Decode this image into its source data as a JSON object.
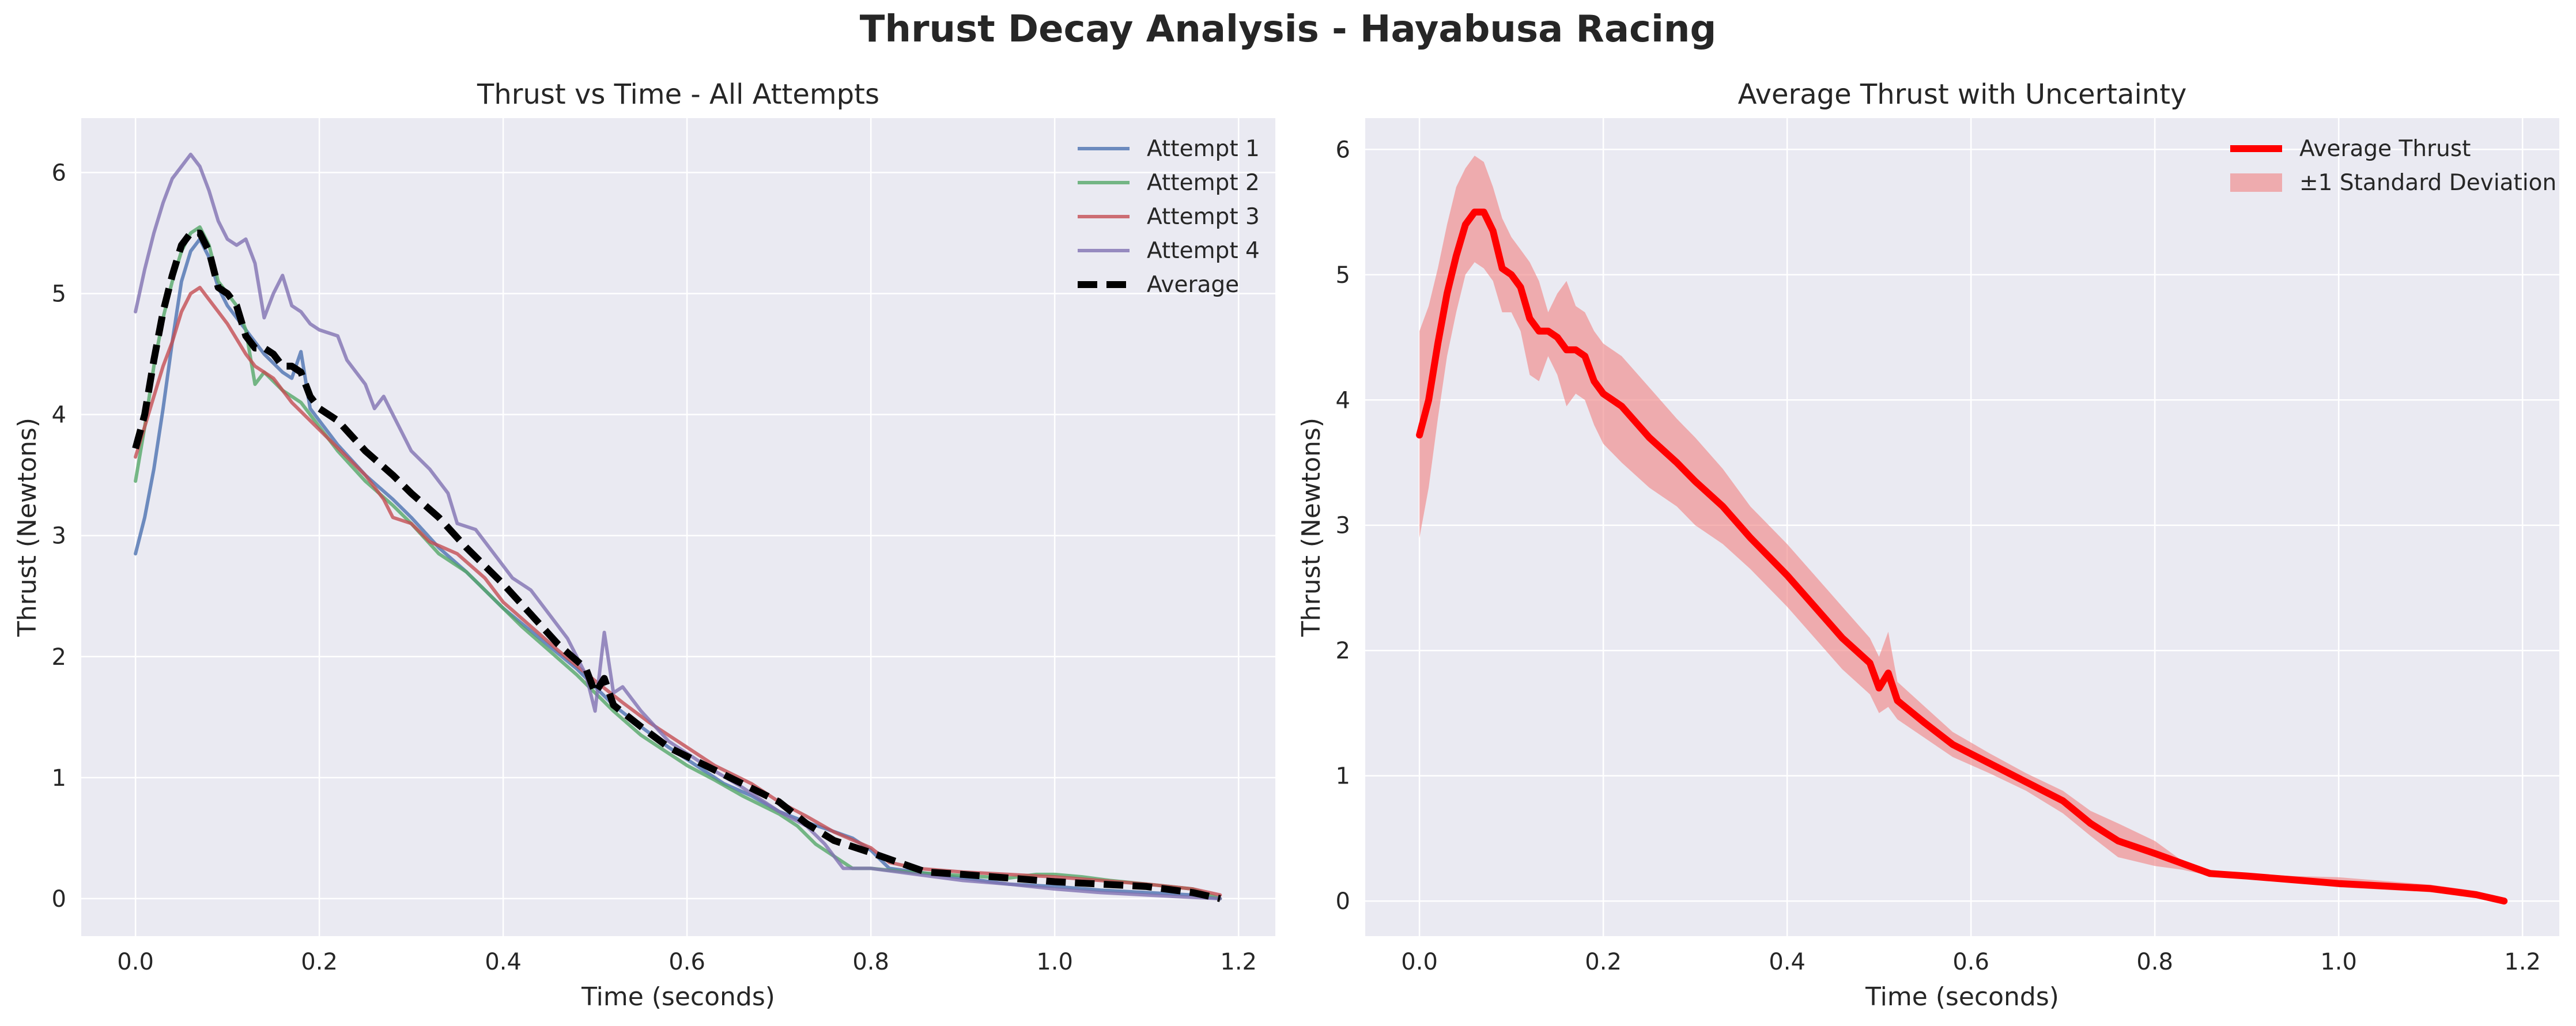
{
  "title": "Thrust Decay Analysis - Hayabusa Racing",
  "chart_data": [
    {
      "type": "line",
      "title": "Thrust vs Time - All Attempts",
      "xlabel": "Time (seconds)",
      "ylabel": "Thrust (Newtons)",
      "xlim": [
        -0.059,
        1.24
      ],
      "ylim": [
        -0.31,
        6.45
      ],
      "xticks": [
        0.0,
        0.2,
        0.4,
        0.6,
        0.8,
        1.0,
        1.2
      ],
      "xtick_labels": [
        "0.0",
        "0.2",
        "0.4",
        "0.6",
        "0.8",
        "1.0",
        "1.2"
      ],
      "yticks": [
        0,
        1,
        2,
        3,
        4,
        5,
        6
      ],
      "ytick_labels": [
        "0",
        "1",
        "2",
        "3",
        "4",
        "5",
        "6"
      ],
      "grid": true,
      "legend_position": "top-right",
      "series": [
        {
          "name": "Attempt 1",
          "color": "#4c72b0",
          "style": "solid",
          "x": [
            0.0,
            0.01,
            0.02,
            0.03,
            0.04,
            0.05,
            0.06,
            0.07,
            0.08,
            0.09,
            0.1,
            0.12,
            0.14,
            0.16,
            0.17,
            0.18,
            0.19,
            0.2,
            0.22,
            0.25,
            0.28,
            0.3,
            0.33,
            0.36,
            0.4,
            0.44,
            0.48,
            0.5,
            0.52,
            0.55,
            0.58,
            0.6,
            0.62,
            0.64,
            0.67,
            0.7,
            0.73,
            0.75,
            0.78,
            0.8,
            0.82,
            0.85,
            0.9,
            0.95,
            1.0,
            1.05,
            1.1,
            1.15,
            1.18
          ],
          "y": [
            2.85,
            3.15,
            3.55,
            4.05,
            4.6,
            5.1,
            5.35,
            5.45,
            5.3,
            5.05,
            4.9,
            4.7,
            4.5,
            4.35,
            4.3,
            4.52,
            4.05,
            3.95,
            3.75,
            3.5,
            3.3,
            3.15,
            2.9,
            2.7,
            2.4,
            2.15,
            1.9,
            1.75,
            1.6,
            1.42,
            1.25,
            1.15,
            1.05,
            0.95,
            0.85,
            0.72,
            0.63,
            0.58,
            0.5,
            0.4,
            0.25,
            0.22,
            0.17,
            0.12,
            0.1,
            0.07,
            0.05,
            0.03,
            0.0
          ]
        },
        {
          "name": "Attempt 2",
          "color": "#55a868",
          "style": "solid",
          "x": [
            0.0,
            0.01,
            0.02,
            0.03,
            0.04,
            0.05,
            0.06,
            0.07,
            0.08,
            0.09,
            0.1,
            0.11,
            0.12,
            0.13,
            0.14,
            0.16,
            0.18,
            0.2,
            0.22,
            0.25,
            0.28,
            0.3,
            0.33,
            0.36,
            0.38,
            0.4,
            0.42,
            0.45,
            0.48,
            0.5,
            0.52,
            0.55,
            0.58,
            0.6,
            0.63,
            0.66,
            0.7,
            0.72,
            0.74,
            0.78,
            0.8,
            0.84,
            0.9,
            0.95,
            0.98,
            1.0,
            1.03,
            1.06,
            1.1,
            1.15,
            1.18
          ],
          "y": [
            3.45,
            3.9,
            4.4,
            4.8,
            5.1,
            5.35,
            5.5,
            5.55,
            5.4,
            5.1,
            5.0,
            4.9,
            4.7,
            4.25,
            4.35,
            4.2,
            4.1,
            3.9,
            3.7,
            3.45,
            3.25,
            3.1,
            2.85,
            2.7,
            2.55,
            2.4,
            2.25,
            2.05,
            1.85,
            1.7,
            1.55,
            1.35,
            1.2,
            1.1,
            0.98,
            0.85,
            0.7,
            0.6,
            0.45,
            0.25,
            0.25,
            0.22,
            0.19,
            0.17,
            0.2,
            0.2,
            0.18,
            0.15,
            0.12,
            0.08,
            0.0
          ]
        },
        {
          "name": "Attempt 3",
          "color": "#c44e52",
          "style": "solid",
          "x": [
            0.0,
            0.01,
            0.02,
            0.03,
            0.04,
            0.05,
            0.06,
            0.07,
            0.08,
            0.09,
            0.1,
            0.12,
            0.13,
            0.15,
            0.17,
            0.19,
            0.21,
            0.23,
            0.25,
            0.27,
            0.28,
            0.3,
            0.32,
            0.35,
            0.38,
            0.4,
            0.43,
            0.46,
            0.5,
            0.53,
            0.56,
            0.6,
            0.63,
            0.67,
            0.7,
            0.73,
            0.76,
            0.8,
            0.82,
            0.85,
            0.9,
            0.95,
            1.0,
            1.05,
            1.1,
            1.15,
            1.18
          ],
          "y": [
            3.65,
            3.9,
            4.15,
            4.4,
            4.6,
            4.85,
            5.0,
            5.05,
            4.95,
            4.85,
            4.75,
            4.5,
            4.4,
            4.3,
            4.1,
            3.95,
            3.8,
            3.65,
            3.5,
            3.3,
            3.15,
            3.1,
            2.95,
            2.85,
            2.65,
            2.45,
            2.25,
            2.05,
            1.8,
            1.62,
            1.45,
            1.25,
            1.1,
            0.95,
            0.8,
            0.68,
            0.55,
            0.42,
            0.3,
            0.25,
            0.22,
            0.2,
            0.18,
            0.15,
            0.12,
            0.08,
            0.03
          ]
        },
        {
          "name": "Attempt 4",
          "color": "#8172b2",
          "style": "solid",
          "x": [
            0.0,
            0.01,
            0.02,
            0.03,
            0.04,
            0.05,
            0.06,
            0.07,
            0.08,
            0.09,
            0.1,
            0.11,
            0.12,
            0.13,
            0.14,
            0.15,
            0.16,
            0.17,
            0.18,
            0.19,
            0.2,
            0.22,
            0.23,
            0.25,
            0.26,
            0.27,
            0.28,
            0.29,
            0.3,
            0.32,
            0.34,
            0.35,
            0.37,
            0.39,
            0.41,
            0.43,
            0.45,
            0.47,
            0.49,
            0.5,
            0.51,
            0.52,
            0.53,
            0.55,
            0.58,
            0.62,
            0.66,
            0.7,
            0.73,
            0.75,
            0.77,
            0.8,
            0.85,
            0.9,
            0.95,
            1.0,
            1.05,
            1.1,
            1.15,
            1.18
          ],
          "y": [
            4.85,
            5.2,
            5.5,
            5.75,
            5.95,
            6.05,
            6.15,
            6.05,
            5.85,
            5.6,
            5.45,
            5.4,
            5.45,
            5.25,
            4.8,
            5.0,
            5.15,
            4.9,
            4.85,
            4.75,
            4.7,
            4.65,
            4.45,
            4.25,
            4.05,
            4.15,
            4.0,
            3.85,
            3.7,
            3.55,
            3.35,
            3.1,
            3.05,
            2.85,
            2.65,
            2.55,
            2.35,
            2.15,
            1.85,
            1.55,
            2.2,
            1.7,
            1.75,
            1.55,
            1.3,
            1.1,
            0.92,
            0.72,
            0.6,
            0.45,
            0.25,
            0.25,
            0.2,
            0.15,
            0.12,
            0.08,
            0.05,
            0.03,
            0.01,
            0.0
          ]
        },
        {
          "name": "Average",
          "color": "#000000",
          "style": "dashed",
          "x": [
            0.0,
            0.01,
            0.02,
            0.03,
            0.04,
            0.05,
            0.06,
            0.07,
            0.08,
            0.09,
            0.1,
            0.11,
            0.12,
            0.13,
            0.14,
            0.15,
            0.16,
            0.17,
            0.18,
            0.19,
            0.2,
            0.22,
            0.25,
            0.28,
            0.3,
            0.33,
            0.36,
            0.4,
            0.43,
            0.46,
            0.49,
            0.5,
            0.51,
            0.52,
            0.55,
            0.58,
            0.62,
            0.66,
            0.7,
            0.73,
            0.76,
            0.8,
            0.83,
            0.86,
            0.9,
            0.95,
            1.0,
            1.05,
            1.1,
            1.15,
            1.18
          ],
          "y": [
            3.72,
            4.0,
            4.45,
            4.85,
            5.15,
            5.4,
            5.5,
            5.5,
            5.35,
            5.05,
            5.0,
            4.9,
            4.65,
            4.55,
            4.55,
            4.5,
            4.4,
            4.4,
            4.35,
            4.15,
            4.05,
            3.95,
            3.7,
            3.5,
            3.35,
            3.15,
            2.9,
            2.6,
            2.35,
            2.1,
            1.9,
            1.7,
            1.82,
            1.6,
            1.42,
            1.25,
            1.1,
            0.95,
            0.8,
            0.62,
            0.48,
            0.38,
            0.3,
            0.22,
            0.2,
            0.17,
            0.14,
            0.12,
            0.1,
            0.05,
            0.0
          ]
        }
      ]
    },
    {
      "type": "line",
      "title": "Average Thrust with Uncertainty",
      "xlabel": "Time (seconds)",
      "ylabel": "Thrust (Newtons)",
      "xlim": [
        -0.059,
        1.24
      ],
      "ylim": [
        -0.28,
        6.25
      ],
      "xticks": [
        0.0,
        0.2,
        0.4,
        0.6,
        0.8,
        1.0,
        1.2
      ],
      "xtick_labels": [
        "0.0",
        "0.2",
        "0.4",
        "0.6",
        "0.8",
        "1.0",
        "1.2"
      ],
      "yticks": [
        0,
        1,
        2,
        3,
        4,
        5,
        6
      ],
      "ytick_labels": [
        "0",
        "1",
        "2",
        "3",
        "4",
        "5",
        "6"
      ],
      "grid": true,
      "legend_position": "top-right",
      "series": [
        {
          "name": "Average Thrust",
          "color": "#ff0000",
          "style": "solid",
          "x": [
            0.0,
            0.01,
            0.02,
            0.03,
            0.04,
            0.05,
            0.06,
            0.07,
            0.08,
            0.09,
            0.1,
            0.11,
            0.12,
            0.13,
            0.14,
            0.15,
            0.16,
            0.17,
            0.18,
            0.19,
            0.2,
            0.22,
            0.25,
            0.28,
            0.3,
            0.33,
            0.36,
            0.4,
            0.43,
            0.46,
            0.49,
            0.5,
            0.51,
            0.52,
            0.55,
            0.58,
            0.62,
            0.66,
            0.7,
            0.73,
            0.76,
            0.8,
            0.83,
            0.86,
            0.9,
            0.95,
            1.0,
            1.05,
            1.1,
            1.15,
            1.18
          ],
          "y": [
            3.72,
            4.0,
            4.45,
            4.85,
            5.15,
            5.4,
            5.5,
            5.5,
            5.35,
            5.05,
            5.0,
            4.9,
            4.65,
            4.55,
            4.55,
            4.5,
            4.4,
            4.4,
            4.35,
            4.15,
            4.05,
            3.95,
            3.7,
            3.5,
            3.35,
            3.15,
            2.9,
            2.6,
            2.35,
            2.1,
            1.9,
            1.7,
            1.82,
            1.6,
            1.42,
            1.25,
            1.1,
            0.95,
            0.8,
            0.62,
            0.48,
            0.38,
            0.3,
            0.22,
            0.2,
            0.17,
            0.14,
            0.12,
            0.1,
            0.05,
            0.0
          ]
        },
        {
          "name": "±1 Standard Deviation",
          "color": "#f08080",
          "style": "band",
          "x": [
            0.0,
            0.01,
            0.02,
            0.03,
            0.04,
            0.05,
            0.06,
            0.07,
            0.08,
            0.09,
            0.1,
            0.11,
            0.12,
            0.13,
            0.14,
            0.15,
            0.16,
            0.17,
            0.18,
            0.19,
            0.2,
            0.22,
            0.25,
            0.28,
            0.3,
            0.33,
            0.36,
            0.4,
            0.43,
            0.46,
            0.49,
            0.5,
            0.51,
            0.52,
            0.55,
            0.58,
            0.62,
            0.66,
            0.7,
            0.73,
            0.76,
            0.8,
            0.83,
            0.86,
            0.9,
            0.95,
            1.0,
            1.05,
            1.1,
            1.15,
            1.18
          ],
          "upper": [
            4.55,
            4.75,
            5.05,
            5.4,
            5.7,
            5.85,
            5.95,
            5.9,
            5.7,
            5.45,
            5.3,
            5.2,
            5.1,
            4.95,
            4.7,
            4.85,
            4.95,
            4.75,
            4.7,
            4.55,
            4.45,
            4.35,
            4.1,
            3.85,
            3.7,
            3.45,
            3.15,
            2.85,
            2.6,
            2.35,
            2.1,
            1.95,
            2.15,
            1.75,
            1.55,
            1.35,
            1.18,
            1.02,
            0.88,
            0.72,
            0.62,
            0.48,
            0.32,
            0.25,
            0.22,
            0.2,
            0.19,
            0.16,
            0.13,
            0.08,
            0.01
          ],
          "lower": [
            2.9,
            3.3,
            3.85,
            4.35,
            4.7,
            5.0,
            5.1,
            5.05,
            4.95,
            4.7,
            4.7,
            4.55,
            4.2,
            4.15,
            4.35,
            4.2,
            3.95,
            4.05,
            4.0,
            3.8,
            3.65,
            3.5,
            3.3,
            3.15,
            3.0,
            2.85,
            2.65,
            2.35,
            2.1,
            1.85,
            1.65,
            1.5,
            1.55,
            1.45,
            1.3,
            1.15,
            1.02,
            0.88,
            0.7,
            0.52,
            0.35,
            0.28,
            0.25,
            0.2,
            0.18,
            0.15,
            0.11,
            0.09,
            0.07,
            0.03,
            0.0
          ]
        }
      ]
    }
  ]
}
